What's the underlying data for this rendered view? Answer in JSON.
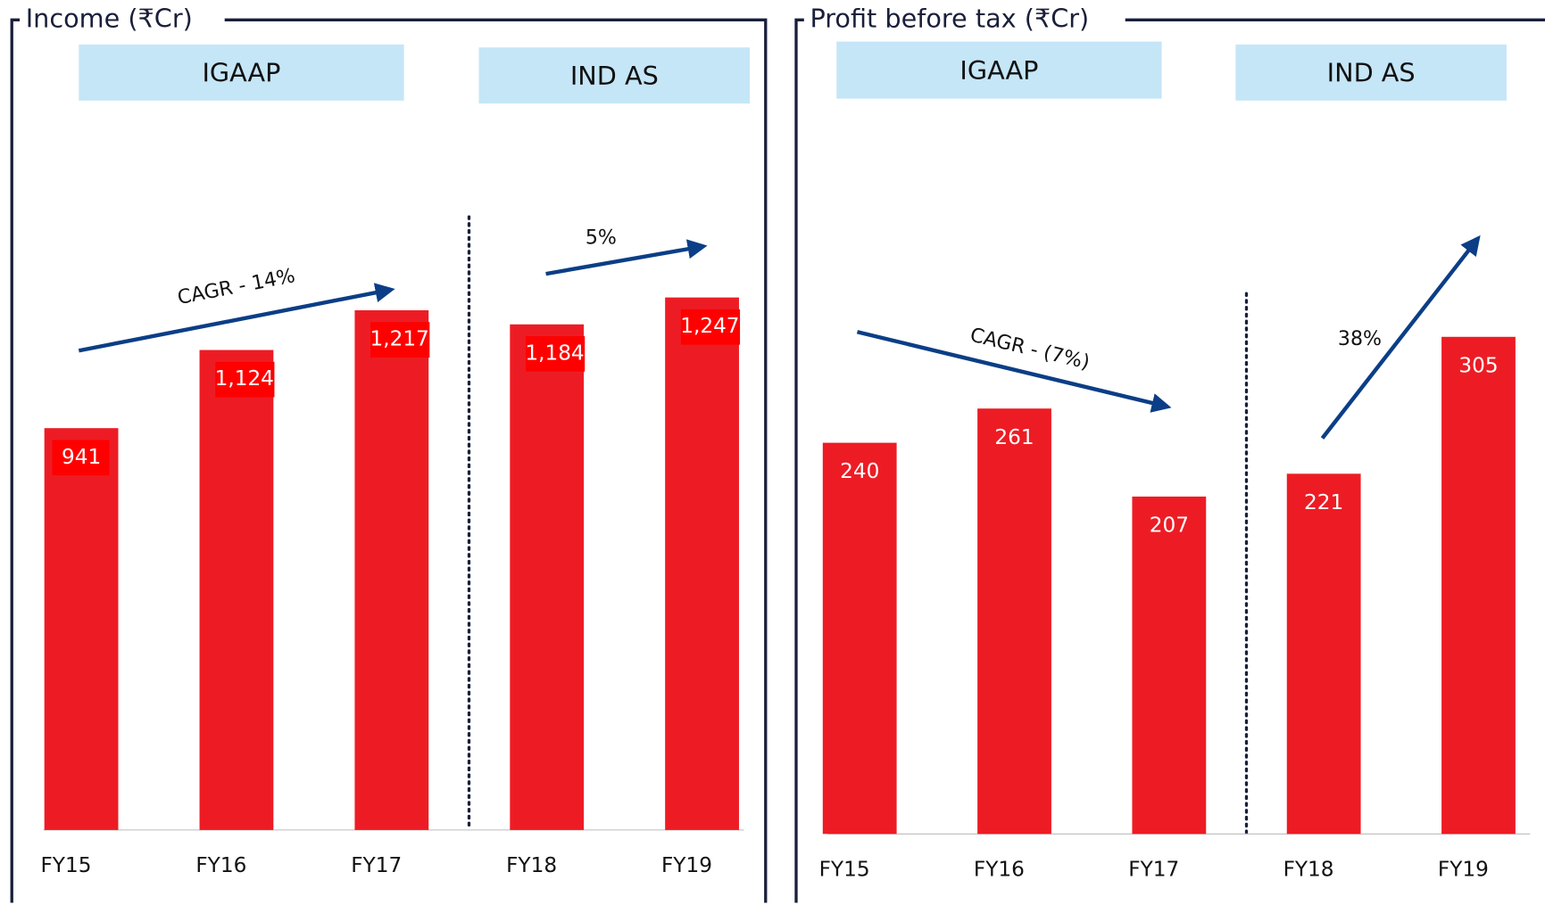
{
  "chart_data": [
    {
      "type": "bar",
      "title": "Income (₹Cr)",
      "categories": [
        "FY15",
        "FY16",
        "FY17",
        "FY18",
        "FY19"
      ],
      "values": [
        941,
        1124,
        1217,
        1184,
        1247
      ],
      "value_labels": [
        "941",
        "1,124",
        "1,217",
        "1,184",
        "1,247"
      ],
      "color": "#ed1c24",
      "segments": [
        "IGAAP",
        "IND AS"
      ],
      "annotations": [
        "CAGR - 14%",
        "5%"
      ]
    },
    {
      "type": "bar",
      "title": "Profit before tax (₹Cr)",
      "categories": [
        "FY15",
        "FY16",
        "FY17",
        "FY18",
        "FY19"
      ],
      "values": [
        240,
        261,
        207,
        221,
        305
      ],
      "color": "#ed1c24",
      "segments": [
        "IGAAP",
        "IND AS"
      ],
      "annotations": [
        "CAGR - (7%)",
        "38%"
      ]
    }
  ]
}
